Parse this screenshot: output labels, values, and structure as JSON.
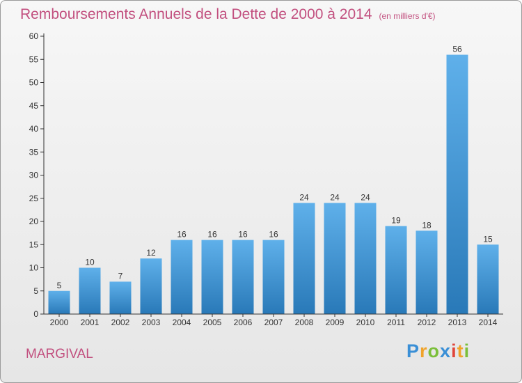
{
  "chart_data": {
    "type": "bar",
    "title": "Remboursements Annuels de la Dette de 2000 à 2014",
    "subtitle": "(en milliers d'€)",
    "categories": [
      "2000",
      "2001",
      "2002",
      "2003",
      "2004",
      "2005",
      "2006",
      "2007",
      "2008",
      "2009",
      "2010",
      "2011",
      "2012",
      "2013",
      "2014"
    ],
    "values": [
      5,
      10,
      7,
      12,
      16,
      16,
      16,
      16,
      24,
      24,
      24,
      19,
      18,
      56,
      15
    ],
    "ylim": [
      0,
      60
    ],
    "yticks": [
      0,
      5,
      10,
      15,
      20,
      25,
      30,
      35,
      40,
      45,
      50,
      55,
      60
    ],
    "xlabel": "",
    "ylabel": "",
    "grid": false
  },
  "commune": "MARGIVAL",
  "logo": {
    "text": "Proxiti",
    "letters": [
      "P",
      "r",
      "o",
      "x",
      "i",
      "t",
      "i"
    ],
    "colors": [
      "#3a8fd6",
      "#f0a32a",
      "#7bbf3a",
      "#3a8fd6",
      "#e0453a",
      "#f0a32a",
      "#7bbf3a"
    ]
  },
  "colors": {
    "accent": "#c2507f",
    "bar_top": "#5fb0ea",
    "bar_bottom": "#2979b8",
    "axis": "#333333"
  }
}
